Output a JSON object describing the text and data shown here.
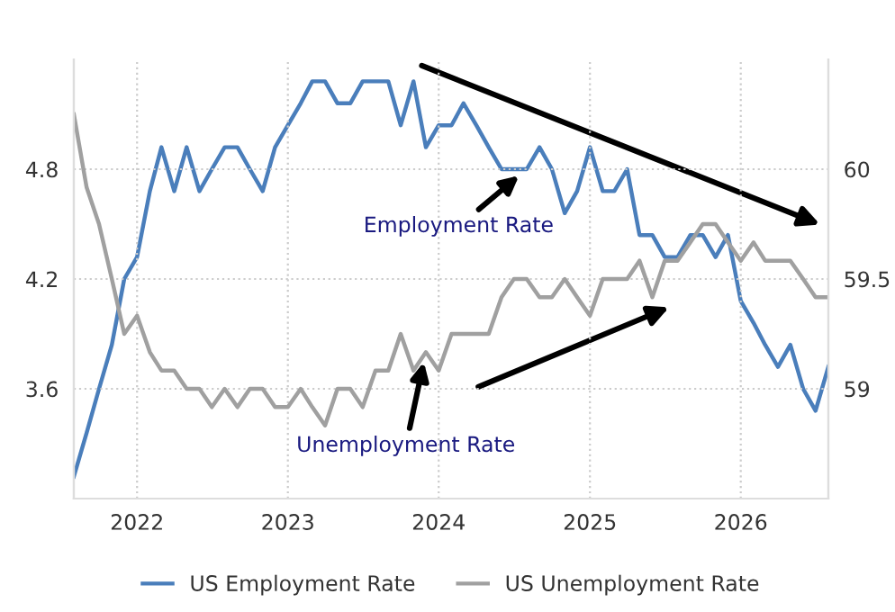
{
  "chart_data": {
    "type": "line",
    "x": [
      "2021-08",
      "2021-09",
      "2021-10",
      "2021-11",
      "2021-12",
      "2022-01",
      "2022-02",
      "2022-03",
      "2022-04",
      "2022-05",
      "2022-06",
      "2022-07",
      "2022-08",
      "2022-09",
      "2022-10",
      "2022-11",
      "2022-12",
      "2023-01",
      "2023-02",
      "2023-03",
      "2023-04",
      "2023-05",
      "2023-06",
      "2023-07",
      "2023-08",
      "2023-09",
      "2023-10",
      "2023-11",
      "2023-12",
      "2024-01",
      "2024-02",
      "2024-03",
      "2024-04",
      "2024-05",
      "2024-06",
      "2024-07",
      "2024-08",
      "2024-09",
      "2024-10",
      "2024-11",
      "2024-12",
      "2025-01",
      "2025-02",
      "2025-03",
      "2025-04",
      "2025-05",
      "2025-06",
      "2025-07",
      "2025-08",
      "2025-09",
      "2025-10",
      "2025-11",
      "2025-12",
      "2026-01",
      "2026-02",
      "2026-03",
      "2026-04",
      "2026-05",
      "2026-06",
      "2026-07",
      "2026-08"
    ],
    "series": [
      {
        "name": "US Employment Rate",
        "color": "#4a7ebb",
        "axis": "y2",
        "values": [
          58.6,
          58.8,
          59.0,
          59.2,
          59.5,
          59.6,
          59.9,
          60.1,
          59.9,
          60.1,
          59.9,
          60.0,
          60.1,
          60.1,
          60.0,
          59.9,
          60.1,
          60.2,
          60.3,
          60.4,
          60.4,
          60.3,
          60.3,
          60.4,
          60.4,
          60.4,
          60.2,
          60.4,
          60.1,
          60.2,
          60.2,
          60.3,
          60.2,
          60.1,
          60.0,
          60.0,
          60.0,
          60.1,
          60.0,
          59.8,
          59.9,
          60.1,
          59.9,
          59.9,
          60.0,
          59.7,
          59.7,
          59.6,
          59.6,
          59.7,
          59.7,
          59.6,
          59.7,
          59.4,
          59.3,
          59.2,
          59.1,
          59.2,
          59.0,
          58.9,
          59.1
        ]
      },
      {
        "name": "US Unemployment Rate",
        "color": "#a0a0a0",
        "values": [
          5.1,
          4.7,
          4.5,
          4.2,
          3.9,
          4.0,
          3.8,
          3.7,
          3.7,
          3.6,
          3.6,
          3.5,
          3.6,
          3.5,
          3.6,
          3.6,
          3.5,
          3.5,
          3.6,
          3.5,
          3.4,
          3.6,
          3.6,
          3.5,
          3.7,
          3.7,
          3.9,
          3.7,
          3.8,
          3.7,
          3.9,
          3.9,
          3.9,
          3.9,
          4.1,
          4.2,
          4.2,
          4.1,
          4.1,
          4.2,
          4.1,
          4.0,
          4.2,
          4.2,
          4.2,
          4.3,
          4.1,
          4.3,
          4.3,
          4.4,
          4.5,
          4.5,
          4.4,
          4.3,
          4.4,
          4.3,
          4.3,
          4.3,
          4.2,
          4.1,
          4.1
        ]
      }
    ],
    "xlim": [
      "2021-08",
      "2026-08"
    ],
    "xticks": [
      {
        "value": "2022-01",
        "label": "2022"
      },
      {
        "value": "2023-01",
        "label": "2023"
      },
      {
        "value": "2024-01",
        "label": "2024"
      },
      {
        "value": "2025-01",
        "label": "2025"
      },
      {
        "value": "2026-01",
        "label": "2026"
      }
    ],
    "ylim": [
      3.0,
      5.4
    ],
    "yticks": [
      3.6,
      4.2,
      4.8
    ],
    "y2lim": [
      58.5,
      60.5
    ],
    "y2ticks": [
      59,
      59.5,
      60
    ],
    "annotations": [
      {
        "text": "Employment Rate",
        "x": "2024-08",
        "y": 4.8
      },
      {
        "text": "Unemployment Rate",
        "x": "2023-12",
        "y": 3.8
      }
    ],
    "grid": true,
    "legend": "bottom",
    "line_style": "solid"
  }
}
